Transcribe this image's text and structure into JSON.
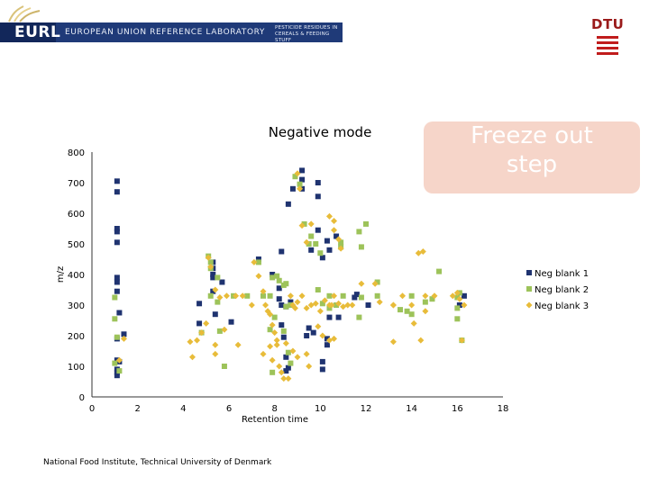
{
  "header": {
    "brand": "EURL",
    "lab_name": "EUROPEAN UNION REFERENCE LABORATORY",
    "lab_sub": "PESTICIDE RESIDUES IN CEREALS & FEEDING STUFF",
    "partner": "DTU"
  },
  "callout": {
    "line1": "Freeze out",
    "line2": "step"
  },
  "footer": {
    "text": "National Food Institute, Technical University of Denmark"
  },
  "colors": {
    "neg1": "#1f3370",
    "neg2": "#9dc35a",
    "neg3": "#e8bc3a",
    "callout_bg": "#f6d5c9"
  },
  "chart_data": {
    "type": "scatter",
    "title": "Negative mode",
    "xlabel": "Retention time",
    "ylabel": "m/z",
    "xlim": [
      0,
      18
    ],
    "ylim": [
      0,
      800
    ],
    "xticks": [
      0,
      2,
      4,
      6,
      8,
      10,
      12,
      14,
      16,
      18
    ],
    "yticks": [
      0,
      100,
      200,
      300,
      400,
      500,
      600,
      700,
      800
    ],
    "grid": false,
    "legend": "right",
    "series": [
      {
        "name": "Neg blank 1",
        "marker": "square",
        "color": "#1f3370",
        "points": [
          [
            1.1,
            705
          ],
          [
            1.1,
            670
          ],
          [
            1.1,
            550
          ],
          [
            1.1,
            540
          ],
          [
            1.1,
            505
          ],
          [
            1.1,
            390
          ],
          [
            1.1,
            375
          ],
          [
            1.1,
            345
          ],
          [
            1.2,
            275
          ],
          [
            1.1,
            190
          ],
          [
            1.4,
            205
          ],
          [
            1.1,
            120
          ],
          [
            1.2,
            115
          ],
          [
            1.1,
            90
          ],
          [
            1.1,
            80
          ],
          [
            1.1,
            70
          ],
          [
            4.7,
            305
          ],
          [
            4.7,
            240
          ],
          [
            5.3,
            440
          ],
          [
            5.3,
            420
          ],
          [
            5.3,
            400
          ],
          [
            5.3,
            390
          ],
          [
            5.3,
            345
          ],
          [
            5.7,
            375
          ],
          [
            5.4,
            270
          ],
          [
            6.1,
            245
          ],
          [
            7.3,
            450
          ],
          [
            8.3,
            475
          ],
          [
            7.9,
            400
          ],
          [
            8.2,
            355
          ],
          [
            8.2,
            320
          ],
          [
            8.3,
            300
          ],
          [
            8.5,
            295
          ],
          [
            8.7,
            310
          ],
          [
            8.3,
            235
          ],
          [
            8.4,
            195
          ],
          [
            8.5,
            130
          ],
          [
            8.6,
            95
          ],
          [
            8.5,
            85
          ],
          [
            8.6,
            630
          ],
          [
            8.8,
            680
          ],
          [
            9.2,
            740
          ],
          [
            9.2,
            710
          ],
          [
            9.2,
            680
          ],
          [
            9.9,
            700
          ],
          [
            9.9,
            655
          ],
          [
            9.6,
            480
          ],
          [
            9.9,
            545
          ],
          [
            10.1,
            455
          ],
          [
            10.3,
            510
          ],
          [
            10.4,
            480
          ],
          [
            10.7,
            525
          ],
          [
            10.4,
            260
          ],
          [
            10.8,
            260
          ],
          [
            10.3,
            190
          ],
          [
            10.3,
            170
          ],
          [
            10.1,
            115
          ],
          [
            10.1,
            90
          ],
          [
            9.5,
            225
          ],
          [
            9.4,
            200
          ],
          [
            9.7,
            210
          ],
          [
            11.5,
            325
          ],
          [
            11.6,
            335
          ],
          [
            12.1,
            300
          ],
          [
            16.1,
            300
          ],
          [
            16.3,
            330
          ]
        ]
      },
      {
        "name": "Neg blank 2",
        "marker": "square",
        "color": "#9dc35a",
        "points": [
          [
            1.0,
            325
          ],
          [
            1.0,
            255
          ],
          [
            1.1,
            195
          ],
          [
            1.0,
            110
          ],
          [
            1.2,
            85
          ],
          [
            4.8,
            210
          ],
          [
            5.1,
            460
          ],
          [
            5.2,
            440
          ],
          [
            5.2,
            420
          ],
          [
            5.2,
            330
          ],
          [
            5.5,
            390
          ],
          [
            5.5,
            310
          ],
          [
            5.6,
            215
          ],
          [
            5.8,
            100
          ],
          [
            6.2,
            330
          ],
          [
            6.8,
            330
          ],
          [
            7.3,
            440
          ],
          [
            7.5,
            330
          ],
          [
            7.8,
            330
          ],
          [
            7.9,
            390
          ],
          [
            8.1,
            395
          ],
          [
            8.2,
            380
          ],
          [
            8.4,
            365
          ],
          [
            8.5,
            370
          ],
          [
            8.5,
            295
          ],
          [
            8.7,
            300
          ],
          [
            8.0,
            260
          ],
          [
            7.8,
            220
          ],
          [
            8.4,
            215
          ],
          [
            8.6,
            145
          ],
          [
            8.7,
            110
          ],
          [
            7.9,
            80
          ],
          [
            8.9,
            720
          ],
          [
            9.1,
            695
          ],
          [
            9.3,
            565
          ],
          [
            9.5,
            500
          ],
          [
            9.6,
            525
          ],
          [
            9.8,
            500
          ],
          [
            10.0,
            470
          ],
          [
            9.9,
            350
          ],
          [
            10.1,
            305
          ],
          [
            10.4,
            290
          ],
          [
            10.7,
            300
          ],
          [
            10.9,
            505
          ],
          [
            10.9,
            490
          ],
          [
            11.7,
            540
          ],
          [
            12.0,
            565
          ],
          [
            11.8,
            490
          ],
          [
            12.5,
            375
          ],
          [
            12.5,
            330
          ],
          [
            11.8,
            325
          ],
          [
            11.7,
            260
          ],
          [
            13.5,
            285
          ],
          [
            13.8,
            280
          ],
          [
            14.0,
            330
          ],
          [
            14.0,
            270
          ],
          [
            14.6,
            310
          ],
          [
            14.9,
            320
          ],
          [
            15.2,
            410
          ],
          [
            16.0,
            325
          ],
          [
            16.1,
            340
          ],
          [
            16.0,
            290
          ],
          [
            16.0,
            255
          ],
          [
            16.2,
            185
          ],
          [
            11.0,
            330
          ],
          [
            10.4,
            330
          ]
        ]
      },
      {
        "name": "Neg blank 3",
        "marker": "diamond",
        "color": "#e8bc3a",
        "points": [
          [
            1.2,
            120
          ],
          [
            1.4,
            190
          ],
          [
            4.3,
            180
          ],
          [
            4.4,
            130
          ],
          [
            4.6,
            185
          ],
          [
            4.8,
            210
          ],
          [
            5.0,
            240
          ],
          [
            5.1,
            455
          ],
          [
            5.2,
            425
          ],
          [
            5.4,
            350
          ],
          [
            5.6,
            325
          ],
          [
            5.8,
            220
          ],
          [
            5.4,
            170
          ],
          [
            5.4,
            140
          ],
          [
            5.9,
            330
          ],
          [
            6.3,
            330
          ],
          [
            6.4,
            170
          ],
          [
            6.6,
            330
          ],
          [
            7.0,
            300
          ],
          [
            7.1,
            440
          ],
          [
            7.3,
            395
          ],
          [
            7.5,
            345
          ],
          [
            7.6,
            300
          ],
          [
            7.7,
            280
          ],
          [
            7.8,
            270
          ],
          [
            7.9,
            235
          ],
          [
            8.0,
            210
          ],
          [
            8.1,
            185
          ],
          [
            8.1,
            170
          ],
          [
            7.8,
            165
          ],
          [
            7.5,
            140
          ],
          [
            7.9,
            120
          ],
          [
            8.2,
            100
          ],
          [
            8.3,
            80
          ],
          [
            8.4,
            60
          ],
          [
            8.6,
            60
          ],
          [
            8.7,
            330
          ],
          [
            8.8,
            300
          ],
          [
            8.9,
            290
          ],
          [
            9.0,
            310
          ],
          [
            9.2,
            330
          ],
          [
            9.4,
            290
          ],
          [
            9.6,
            300
          ],
          [
            9.8,
            305
          ],
          [
            10.0,
            280
          ],
          [
            10.2,
            315
          ],
          [
            10.4,
            300
          ],
          [
            10.5,
            300
          ],
          [
            10.6,
            330
          ],
          [
            10.8,
            305
          ],
          [
            11.0,
            295
          ],
          [
            11.2,
            300
          ],
          [
            9.0,
            730
          ],
          [
            9.1,
            680
          ],
          [
            9.2,
            560
          ],
          [
            9.6,
            565
          ],
          [
            9.4,
            505
          ],
          [
            10.4,
            590
          ],
          [
            10.6,
            575
          ],
          [
            10.6,
            545
          ],
          [
            10.8,
            515
          ],
          [
            10.9,
            485
          ],
          [
            11.4,
            300
          ],
          [
            11.8,
            370
          ],
          [
            12.4,
            370
          ],
          [
            12.6,
            310
          ],
          [
            13.2,
            300
          ],
          [
            13.2,
            300
          ],
          [
            13.6,
            330
          ],
          [
            14.0,
            300
          ],
          [
            13.2,
            180
          ],
          [
            14.1,
            240
          ],
          [
            14.3,
            470
          ],
          [
            14.5,
            475
          ],
          [
            14.6,
            330
          ],
          [
            14.6,
            280
          ],
          [
            14.4,
            185
          ],
          [
            15.0,
            330
          ],
          [
            15.8,
            330
          ],
          [
            16.0,
            340
          ],
          [
            16.1,
            320
          ],
          [
            16.3,
            300
          ],
          [
            16.2,
            185
          ],
          [
            8.8,
            150
          ],
          [
            9.0,
            130
          ],
          [
            9.4,
            140
          ],
          [
            9.5,
            100
          ],
          [
            10.1,
            200
          ],
          [
            10.4,
            185
          ],
          [
            9.9,
            230
          ],
          [
            10.6,
            190
          ],
          [
            8.5,
            175
          ]
        ]
      }
    ]
  }
}
